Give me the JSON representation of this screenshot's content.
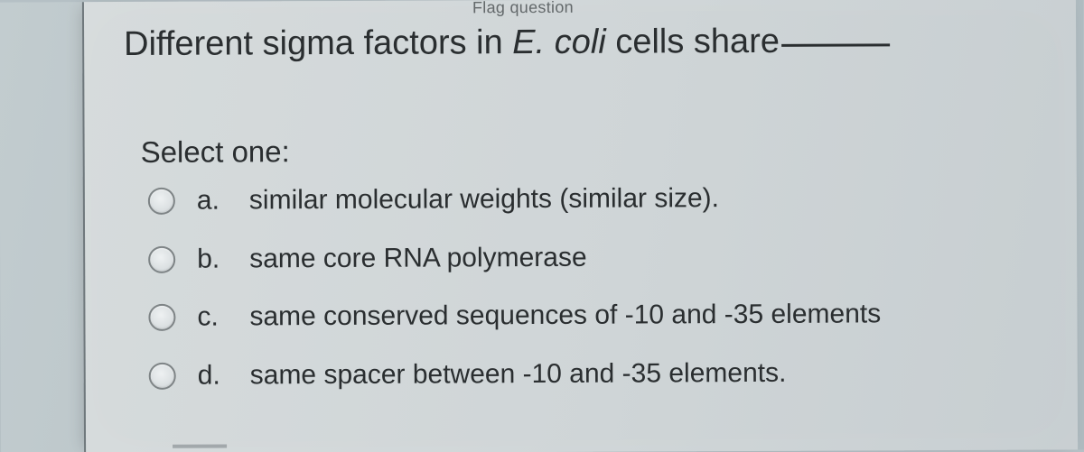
{
  "flag_fragment": "Flag question",
  "question": {
    "prefix": "Different sigma factors in ",
    "italic": "E. coli",
    "suffix": " cells share"
  },
  "select_label": "Select one:",
  "options": [
    {
      "letter": "a.",
      "text": "similar molecular weights (similar size)."
    },
    {
      "letter": "b.",
      "text": "same core RNA polymerase"
    },
    {
      "letter": "c.",
      "text": "same conserved sequences of -10 and -35 elements"
    },
    {
      "letter": "d.",
      "text": "same spacer between -10 and -35 elements."
    }
  ],
  "colors": {
    "outer_bg": "#b5c0c5",
    "panel_bg": "#d2d8d9",
    "text": "#2a2e30",
    "radio_border": "#7e8486"
  }
}
